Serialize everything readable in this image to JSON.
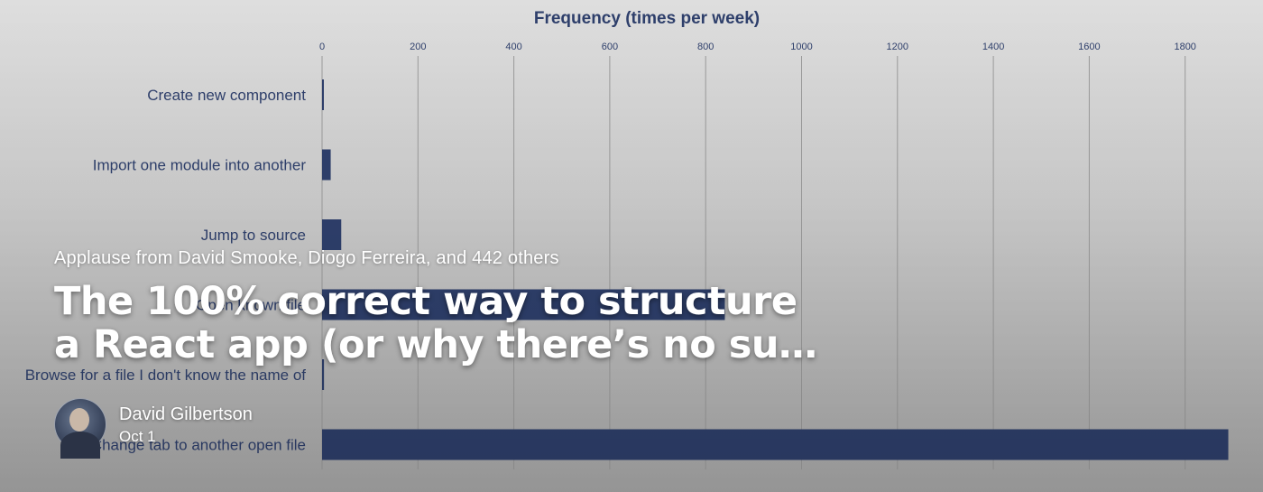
{
  "article": {
    "applause": "Applause from David Smooke, Diogo Ferreira, and 442 others",
    "title_line1": "The 100% correct way to structure",
    "title_line2": "a React app (or why there’s no su…",
    "author_name": "David Gilbertson",
    "date": "Oct 1",
    "avatar_icon": "avatar-photo-icon"
  },
  "colors": {
    "bar": "#2e3f6b",
    "chart_text": "#2e3f6b",
    "background": "#bdbdbd",
    "overlay_text": "#ffffff"
  },
  "chart_data": {
    "type": "bar",
    "orientation": "horizontal",
    "title": "Frequency (times per week)",
    "xlim": [
      0,
      1800
    ],
    "xticks": [
      0,
      200,
      400,
      600,
      800,
      1000,
      1200,
      1400,
      1600,
      1800
    ],
    "grid": true,
    "categories": [
      "Create new component",
      "Import one module into another",
      "Jump to source",
      "Open known file",
      "Browse for a file I don't know the name of",
      "Change tab to another open file"
    ],
    "values": [
      3,
      18,
      40,
      840,
      4,
      1890
    ]
  }
}
